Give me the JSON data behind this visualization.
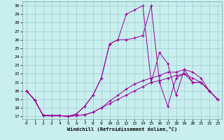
{
  "xlabel": "Windchill (Refroidissement éolien,°C)",
  "background_color": "#c8eeee",
  "grid_color": "#a0ccd0",
  "line_color": "#990099",
  "xlim_min": -0.5,
  "xlim_max": 23.5,
  "ylim_min": 16.7,
  "ylim_max": 30.5,
  "xticks": [
    0,
    1,
    2,
    3,
    4,
    5,
    6,
    7,
    8,
    9,
    10,
    11,
    12,
    13,
    14,
    15,
    16,
    17,
    18,
    19,
    20,
    21,
    22,
    23
  ],
  "yticks": [
    17,
    18,
    19,
    20,
    21,
    22,
    23,
    24,
    25,
    26,
    27,
    28,
    29,
    30
  ],
  "series": [
    {
      "x": [
        0,
        1,
        2,
        3,
        4,
        5,
        6,
        7,
        8,
        9,
        10,
        11,
        12,
        13,
        14,
        15,
        16,
        17,
        18,
        19,
        20,
        21,
        22,
        23
      ],
      "y": [
        20.0,
        18.9,
        17.1,
        17.1,
        17.1,
        17.0,
        17.3,
        18.2,
        19.5,
        21.5,
        25.5,
        26.0,
        26.0,
        26.2,
        26.5,
        30.0,
        21.0,
        18.2,
        21.5,
        22.0,
        21.0,
        21.0,
        20.0,
        19.0
      ]
    },
    {
      "x": [
        0,
        1,
        2,
        3,
        4,
        5,
        6,
        7,
        8,
        9,
        10,
        11,
        12,
        13,
        14,
        15,
        16,
        17,
        18,
        19,
        20,
        21,
        22,
        23
      ],
      "y": [
        20.0,
        18.9,
        17.1,
        17.1,
        17.1,
        17.0,
        17.3,
        18.2,
        19.5,
        21.5,
        25.5,
        26.0,
        29.0,
        29.5,
        30.0,
        21.0,
        24.5,
        23.2,
        19.5,
        22.5,
        21.0,
        21.0,
        20.0,
        19.0
      ]
    },
    {
      "x": [
        0,
        1,
        2,
        3,
        4,
        5,
        6,
        7,
        8,
        9,
        10,
        11,
        12,
        13,
        14,
        15,
        16,
        17,
        18,
        19,
        20,
        21,
        22,
        23
      ],
      "y": [
        20.0,
        18.9,
        17.1,
        17.1,
        17.1,
        17.0,
        17.1,
        17.2,
        17.5,
        18.0,
        18.5,
        19.0,
        19.5,
        20.0,
        20.5,
        21.0,
        21.2,
        21.5,
        21.8,
        22.0,
        21.5,
        21.0,
        20.0,
        19.0
      ]
    },
    {
      "x": [
        0,
        1,
        2,
        3,
        4,
        5,
        6,
        7,
        8,
        9,
        10,
        11,
        12,
        13,
        14,
        15,
        16,
        17,
        18,
        19,
        20,
        21,
        22,
        23
      ],
      "y": [
        20.0,
        18.9,
        17.1,
        17.1,
        17.1,
        17.0,
        17.1,
        17.2,
        17.5,
        18.0,
        18.8,
        19.5,
        20.2,
        20.8,
        21.2,
        21.5,
        21.8,
        22.2,
        22.2,
        22.5,
        22.2,
        21.5,
        20.0,
        19.0
      ]
    }
  ]
}
